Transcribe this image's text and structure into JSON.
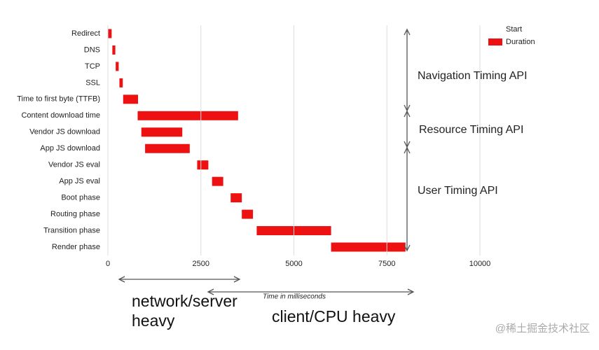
{
  "chart_data": {
    "type": "stacked-bar-horizontal",
    "categories": [
      "Redirect",
      "DNS",
      "TCP",
      "SSL",
      "Time to first byte (TTFB)",
      "Content download time",
      "Vendor JS download",
      "App JS download",
      "Vendor JS eval",
      "App JS eval",
      "Boot phase",
      "Routing phase",
      "Transition phase",
      "Render phase"
    ],
    "series": [
      {
        "name": "Start",
        "color": "none",
        "values": [
          0,
          120,
          210,
          310,
          410,
          800,
          900,
          1000,
          2400,
          2800,
          3300,
          3600,
          4000,
          6000
        ]
      },
      {
        "name": "Duration",
        "color": "#ee1111",
        "values": [
          100,
          80,
          80,
          90,
          400,
          2700,
          1100,
          1200,
          300,
          300,
          300,
          300,
          2000,
          2000
        ]
      }
    ],
    "xlim": [
      0,
      10000
    ],
    "xticks": [
      0,
      2500,
      5000,
      7500,
      10000
    ],
    "grid": true,
    "x_label": "Time in milliseconds",
    "api_labels": [
      "Navigation Timing API",
      "Resource Timing API",
      "User Timing API"
    ],
    "phase_labels": [
      "network/server heavy",
      "client/CPU heavy"
    ],
    "watermark": "@稀土掘金技术社区"
  }
}
